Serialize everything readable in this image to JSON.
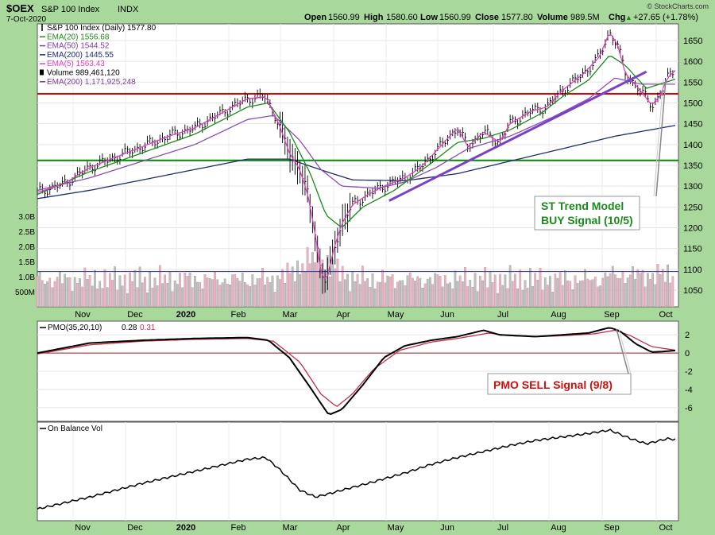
{
  "header": {
    "symbol": "$OEX",
    "name": "S&P 100 Index",
    "exchange": "INDX",
    "date": "7-Oct-2020",
    "open_label": "Open",
    "open": "1560.99",
    "high_label": "High",
    "high": "1580.60",
    "low_label": "Low",
    "low": "1560.99",
    "close_label": "Close",
    "close": "1577.80",
    "volume_label": "Volume",
    "volume": "989.5M",
    "chg_label": "Chg",
    "chg": "+27.65 (+1.78%)",
    "chg_arrow": "▲",
    "watermark": "© StockCharts.com"
  },
  "legend": [
    {
      "text": "S&P 100 Index (Daily) 1577.80",
      "color": "#000000",
      "marker": "bar"
    },
    {
      "text": "EMA(20) 1556.68",
      "color": "#1a8a1a",
      "marker": "line"
    },
    {
      "text": "EMA(50) 1544.52",
      "color": "#7b3fa0",
      "marker": "line"
    },
    {
      "text": "EMA(200) 1445.55",
      "color": "#1c2d6e",
      "marker": "line"
    },
    {
      "text": "EMA(5) 1563.43",
      "color": "#e040c0",
      "marker": "line"
    },
    {
      "text": "Volume 989,461,120",
      "color": "#000000",
      "marker": "box"
    },
    {
      "text": "EMA(200) 1,171,925,248",
      "color": "#7b3fa0",
      "marker": "line"
    }
  ],
  "annotations": {
    "st_trend_line1": "ST Trend Model",
    "st_trend_line2": "BUY Signal (10/5)",
    "pmo_sell": "PMO SELL Signal (9/8)"
  },
  "pmo_panel": {
    "label": "PMO(35,20,10)",
    "pmo_value": "0.28",
    "signal_value": "0.31"
  },
  "obv_panel": {
    "label": "On Balance Vol"
  },
  "colors": {
    "background": "#a9d89c",
    "panel": "#ffffff",
    "resistance": "#dd0000",
    "support": "#008800",
    "trend": "#7b3fc8",
    "volume_up": "#c0c0c0",
    "volume_down": "#e8b4c4"
  },
  "chart_data": {
    "type": "line",
    "x_months": [
      "Nov",
      "Dec",
      "2020",
      "Feb",
      "Mar",
      "Apr",
      "May",
      "Jun",
      "Jul",
      "Aug",
      "Sep",
      "Oct"
    ],
    "price_axis": {
      "ylim": [
        1010,
        1690
      ],
      "ticks": [
        1050,
        1100,
        1150,
        1200,
        1250,
        1300,
        1350,
        1400,
        1450,
        1500,
        1550,
        1600,
        1650
      ]
    },
    "volume_axis": {
      "ticks": [
        "500M",
        "1.0B",
        "1.5B",
        "2.0B",
        "2.5B",
        "3.0B"
      ],
      "tick_values": [
        0.5,
        1.0,
        1.5,
        2.0,
        2.5,
        3.0
      ]
    },
    "horizontal_lines": [
      {
        "name": "resistance",
        "value": 1522
      },
      {
        "name": "support",
        "value": 1362
      }
    ],
    "trend_line": {
      "start": {
        "month_index": 6.7,
        "value": 1265
      },
      "end": {
        "month_index": 11.6,
        "value": 1575
      }
    },
    "price_anchors": [
      [
        0,
        1285
      ],
      [
        0.5,
        1305
      ],
      [
        1,
        1345
      ],
      [
        1.5,
        1370
      ],
      [
        2,
        1395
      ],
      [
        2.5,
        1420
      ],
      [
        3,
        1440
      ],
      [
        3.5,
        1475
      ],
      [
        4,
        1510
      ],
      [
        4.35,
        1515
      ],
      [
        4.6,
        1450
      ],
      [
        4.8,
        1380
      ],
      [
        5,
        1340
      ],
      [
        5.15,
        1280
      ],
      [
        5.3,
        1180
      ],
      [
        5.4,
        1095
      ],
      [
        5.5,
        1070
      ],
      [
        5.65,
        1150
      ],
      [
        5.8,
        1210
      ],
      [
        6,
        1255
      ],
      [
        6.3,
        1280
      ],
      [
        6.6,
        1300
      ],
      [
        7,
        1320
      ],
      [
        7.3,
        1345
      ],
      [
        7.6,
        1385
      ],
      [
        8,
        1440
      ],
      [
        8.2,
        1395
      ],
      [
        8.5,
        1430
      ],
      [
        8.8,
        1405
      ],
      [
        9,
        1450
      ],
      [
        9.4,
        1480
      ],
      [
        9.7,
        1490
      ],
      [
        10,
        1530
      ],
      [
        10.4,
        1570
      ],
      [
        10.7,
        1610
      ],
      [
        10.9,
        1670
      ],
      [
        11.05,
        1640
      ],
      [
        11.2,
        1570
      ],
      [
        11.45,
        1535
      ],
      [
        11.7,
        1495
      ],
      [
        11.85,
        1515
      ],
      [
        12,
        1560
      ],
      [
        12.15,
        1578
      ]
    ],
    "ema20_anchors": [
      [
        0,
        1280
      ],
      [
        1,
        1335
      ],
      [
        2,
        1380
      ],
      [
        3,
        1425
      ],
      [
        4,
        1490
      ],
      [
        4.4,
        1500
      ],
      [
        4.8,
        1430
      ],
      [
        5.2,
        1330
      ],
      [
        5.5,
        1230
      ],
      [
        5.8,
        1200
      ],
      [
        6.2,
        1250
      ],
      [
        6.8,
        1290
      ],
      [
        7.5,
        1355
      ],
      [
        8,
        1405
      ],
      [
        8.5,
        1415
      ],
      [
        9,
        1435
      ],
      [
        9.6,
        1475
      ],
      [
        10,
        1515
      ],
      [
        10.5,
        1555
      ],
      [
        10.9,
        1615
      ],
      [
        11.2,
        1590
      ],
      [
        11.6,
        1535
      ],
      [
        12.15,
        1557
      ]
    ],
    "ema50_anchors": [
      [
        0,
        1290
      ],
      [
        1,
        1320
      ],
      [
        2,
        1360
      ],
      [
        3,
        1400
      ],
      [
        4,
        1460
      ],
      [
        4.5,
        1470
      ],
      [
        5,
        1410
      ],
      [
        5.4,
        1340
      ],
      [
        5.8,
        1300
      ],
      [
        6.5,
        1295
      ],
      [
        7,
        1310
      ],
      [
        7.6,
        1345
      ],
      [
        8.2,
        1390
      ],
      [
        9,
        1420
      ],
      [
        9.8,
        1465
      ],
      [
        10.5,
        1510
      ],
      [
        11,
        1560
      ],
      [
        11.5,
        1545
      ],
      [
        12.15,
        1545
      ]
    ],
    "ema200_anchors": [
      [
        0,
        1270
      ],
      [
        1,
        1290
      ],
      [
        2,
        1315
      ],
      [
        3,
        1340
      ],
      [
        4,
        1365
      ],
      [
        4.8,
        1365
      ],
      [
        5.5,
        1335
      ],
      [
        6,
        1315
      ],
      [
        7,
        1313
      ],
      [
        8,
        1330
      ],
      [
        9,
        1360
      ],
      [
        10,
        1390
      ],
      [
        11,
        1420
      ],
      [
        12.15,
        1446
      ]
    ],
    "volume_avg_bn": 1.17,
    "pmo_axis": {
      "ylim": [
        -7.5,
        3.5
      ],
      "ticks": [
        2,
        0,
        -2,
        -4,
        -6
      ]
    },
    "pmo_anchors": [
      [
        0,
        0
      ],
      [
        1,
        1.1
      ],
      [
        2,
        1.4
      ],
      [
        3,
        1.6
      ],
      [
        4,
        1.7
      ],
      [
        4.4,
        1.4
      ],
      [
        4.8,
        -0.5
      ],
      [
        5.2,
        -3.8
      ],
      [
        5.55,
        -6.8
      ],
      [
        5.8,
        -6.2
      ],
      [
        6.2,
        -3.5
      ],
      [
        6.6,
        -0.5
      ],
      [
        7,
        0.8
      ],
      [
        7.5,
        1.4
      ],
      [
        8,
        1.8
      ],
      [
        8.5,
        2.5
      ],
      [
        8.8,
        2.0
      ],
      [
        9.5,
        1.8
      ],
      [
        10,
        2.0
      ],
      [
        10.5,
        2.2
      ],
      [
        10.9,
        2.8
      ],
      [
        11.1,
        2.4
      ],
      [
        11.4,
        1.0
      ],
      [
        11.7,
        0.1
      ],
      [
        12,
        0.2
      ],
      [
        12.15,
        0.28
      ]
    ],
    "pmo_signal_anchors": [
      [
        0,
        -0.1
      ],
      [
        1,
        0.9
      ],
      [
        2,
        1.3
      ],
      [
        3,
        1.5
      ],
      [
        4,
        1.6
      ],
      [
        4.5,
        1.3
      ],
      [
        5,
        -1.0
      ],
      [
        5.4,
        -4.5
      ],
      [
        5.7,
        -5.9
      ],
      [
        6,
        -4.5
      ],
      [
        6.4,
        -1.8
      ],
      [
        6.9,
        0.3
      ],
      [
        7.5,
        1.2
      ],
      [
        8,
        1.6
      ],
      [
        8.6,
        2.2
      ],
      [
        9,
        1.9
      ],
      [
        9.5,
        1.8
      ],
      [
        10,
        1.9
      ],
      [
        10.6,
        2.1
      ],
      [
        11.0,
        2.5
      ],
      [
        11.3,
        1.9
      ],
      [
        11.7,
        0.7
      ],
      [
        12.15,
        0.31
      ]
    ],
    "obv_anchors": [
      [
        0,
        0.08
      ],
      [
        1,
        0.22
      ],
      [
        2,
        0.38
      ],
      [
        3,
        0.52
      ],
      [
        4,
        0.66
      ],
      [
        4.35,
        0.68
      ],
      [
        4.6,
        0.55
      ],
      [
        5.0,
        0.3
      ],
      [
        5.3,
        0.22
      ],
      [
        5.5,
        0.25
      ],
      [
        5.8,
        0.3
      ],
      [
        6.3,
        0.38
      ],
      [
        7,
        0.5
      ],
      [
        7.5,
        0.6
      ],
      [
        8,
        0.68
      ],
      [
        8.5,
        0.75
      ],
      [
        9,
        0.82
      ],
      [
        9.5,
        0.88
      ],
      [
        10,
        0.92
      ],
      [
        10.5,
        0.96
      ],
      [
        10.9,
        1.0
      ],
      [
        11.3,
        0.9
      ],
      [
        11.6,
        0.84
      ],
      [
        12,
        0.9
      ],
      [
        12.15,
        0.89
      ]
    ]
  }
}
